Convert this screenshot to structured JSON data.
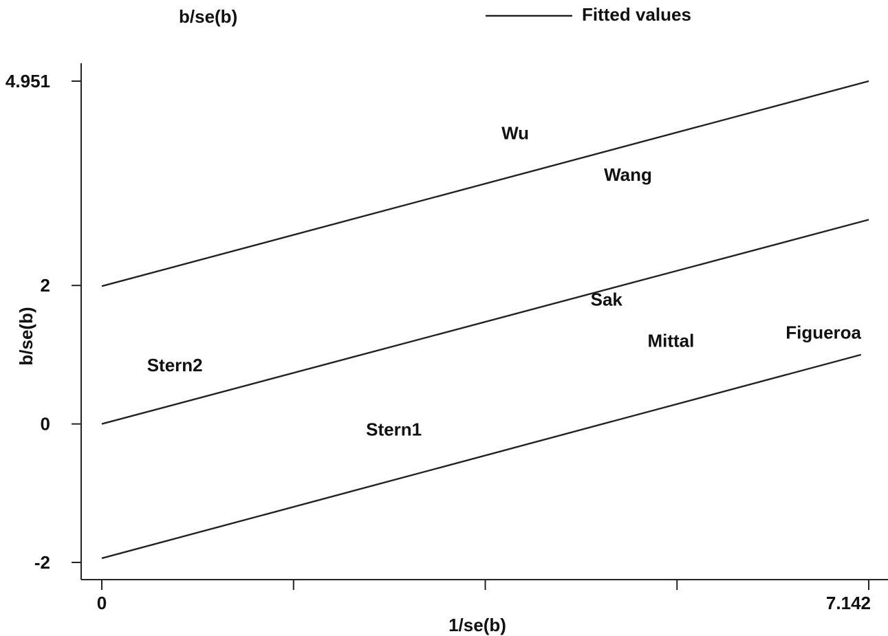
{
  "chart_data": {
    "type": "scatter",
    "legend": {
      "position": "top",
      "items": [
        {
          "label": "b/se(b)",
          "marker": "label-text"
        },
        {
          "label": "Fitted values",
          "marker": "line"
        }
      ]
    },
    "xlabel": "1/se(b)",
    "ylabel": "b/se(b)",
    "xlim": [
      0,
      7.142
    ],
    "ylim": [
      -2,
      4.951
    ],
    "x_ticks": [
      {
        "value": 0,
        "label": "0"
      },
      {
        "value": 1.7855,
        "label": ""
      },
      {
        "value": 3.571,
        "label": ""
      },
      {
        "value": 5.3565,
        "label": ""
      },
      {
        "value": 7.142,
        "label": "7.142"
      }
    ],
    "y_ticks": [
      {
        "value": -2,
        "label": "-2"
      },
      {
        "value": 0,
        "label": "0"
      },
      {
        "value": 2,
        "label": "2"
      },
      {
        "value": 4.951,
        "label": "4.951"
      }
    ],
    "grid": false,
    "points": [
      {
        "label": "Wu",
        "x": 3.85,
        "y": 4.2
      },
      {
        "label": "Wang",
        "x": 4.9,
        "y": 3.6
      },
      {
        "label": "Sak",
        "x": 4.7,
        "y": 1.8
      },
      {
        "label": "Mittal",
        "x": 5.3,
        "y": 1.2
      },
      {
        "label": "Figueroa",
        "x": 6.72,
        "y": 1.32
      },
      {
        "label": "Stern2",
        "x": 0.68,
        "y": 0.85
      },
      {
        "label": "Stern1",
        "x": 2.72,
        "y": -0.08
      }
    ],
    "fitted_lines": [
      {
        "name": "upper",
        "x": [
          0,
          7.142
        ],
        "y": [
          1.99,
          4.951
        ]
      },
      {
        "name": "fitted",
        "x": [
          0,
          7.142
        ],
        "y": [
          0,
          2.95
        ]
      },
      {
        "name": "lower",
        "x": [
          0,
          7.07
        ],
        "y": [
          -1.94,
          1.0
        ]
      }
    ]
  }
}
